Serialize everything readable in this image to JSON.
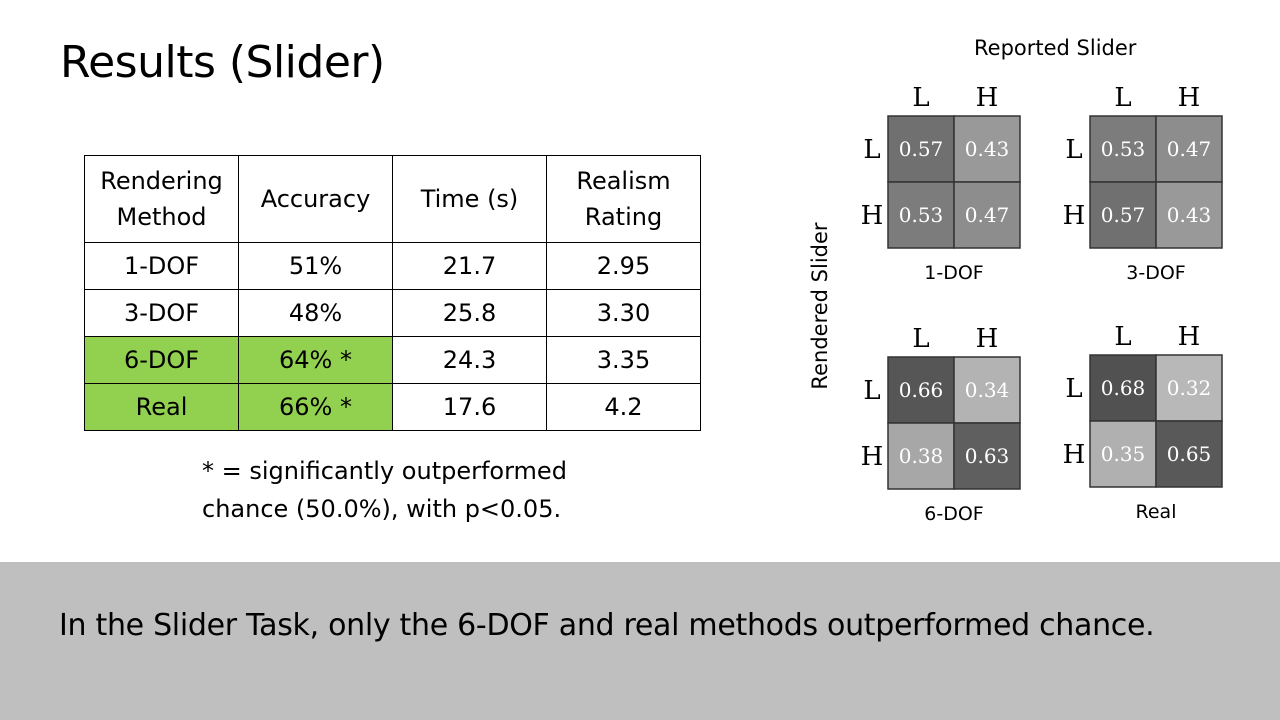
{
  "slide": {
    "title": "Results (Slider)",
    "takeaway": "In the Slider Task, only the 6-DOF and real methods outperformed chance.",
    "footnote": "* = significantly outperformed\nchance (50.0%), with p<0.05."
  },
  "table": {
    "headers": [
      "Rendering Method",
      "Accuracy",
      "Time (s)",
      "Realism Rating"
    ],
    "rows": [
      {
        "method": "1-DOF",
        "accuracy": "51%",
        "time": "21.7",
        "realism": "2.95",
        "highlight": false
      },
      {
        "method": "3-DOF",
        "accuracy": "48%",
        "time": "25.8",
        "realism": "3.30",
        "highlight": false
      },
      {
        "method": "6-DOF",
        "accuracy": "64% *",
        "time": "24.3",
        "realism": "3.35",
        "highlight": true
      },
      {
        "method": "Real",
        "accuracy": "66% *",
        "time": "17.6",
        "realism": "4.2",
        "highlight": true
      }
    ],
    "highlight_color": "#92d050"
  },
  "chart_data": {
    "type": "heatmap",
    "xlabel": "Reported Slider",
    "ylabel": "Rendered Slider",
    "col_labels": [
      "L",
      "H"
    ],
    "row_labels": [
      "L",
      "H"
    ],
    "matrices": [
      {
        "name": "1-DOF",
        "values": [
          [
            0.57,
            0.43
          ],
          [
            0.53,
            0.47
          ]
        ]
      },
      {
        "name": "3-DOF",
        "values": [
          [
            0.53,
            0.47
          ],
          [
            0.57,
            0.43
          ]
        ]
      },
      {
        "name": "6-DOF",
        "values": [
          [
            0.66,
            0.34
          ],
          [
            0.38,
            0.63
          ]
        ]
      },
      {
        "name": "Real",
        "values": [
          [
            0.68,
            0.32
          ],
          [
            0.35,
            0.65
          ]
        ]
      }
    ],
    "value_range": [
      0.3,
      0.7
    ],
    "colormap": "grayscale-dark-high"
  },
  "colors": {
    "bottom_band": "#bfbfbf",
    "background": "#ffffff"
  }
}
